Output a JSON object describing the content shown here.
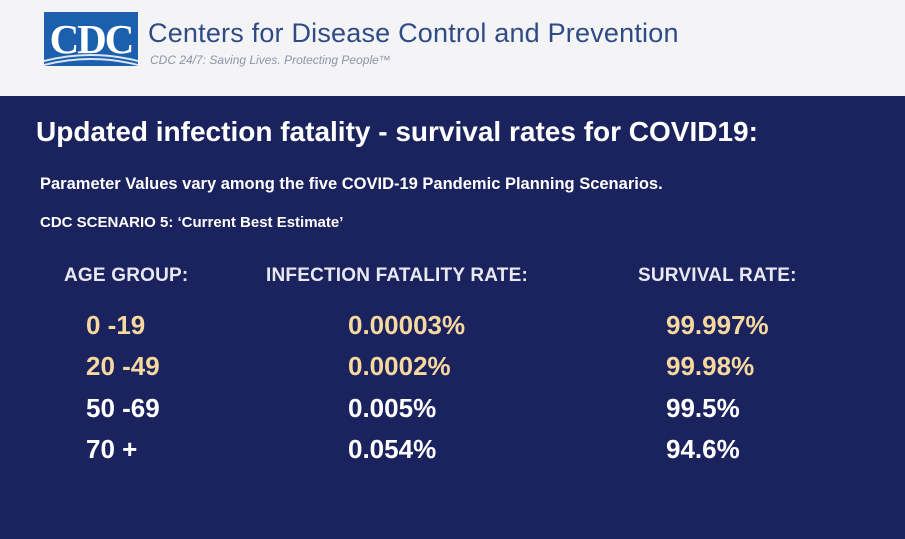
{
  "header": {
    "logo_text": "CDC",
    "org_name": "Centers for Disease Control and Prevention",
    "tagline": "CDC 24/7: Saving Lives. Protecting People™"
  },
  "slide": {
    "title": "Updated infection fatality - survival rates for COVID19:",
    "subtitle": "Parameter Values vary among the five COVID-19 Pandemic Planning Scenarios.",
    "scenario": "CDC SCENARIO 5: ‘Current Best Estimate’"
  },
  "table": {
    "headers": {
      "age_group": "AGE GROUP:",
      "ifr": "INFECTION FATALITY RATE:",
      "survival": "SURVIVAL RATE:"
    },
    "rows": [
      {
        "age": "0 -19",
        "ifr": "0.00003%",
        "survival": "99.997%"
      },
      {
        "age": "20 -49",
        "ifr": "0.0002%",
        "survival": "99.98%"
      },
      {
        "age": "50 -69",
        "ifr": "0.005%",
        "survival": "99.5%"
      },
      {
        "age": "70 +",
        "ifr": "0.054%",
        "survival": "94.6%"
      }
    ]
  },
  "colors": {
    "background": "#1b235e",
    "header_bg": "#f4f4f6",
    "logo_blue": "#1c5fae",
    "highlight_text": "#f7d9a0",
    "normal_text": "#ffffff"
  }
}
